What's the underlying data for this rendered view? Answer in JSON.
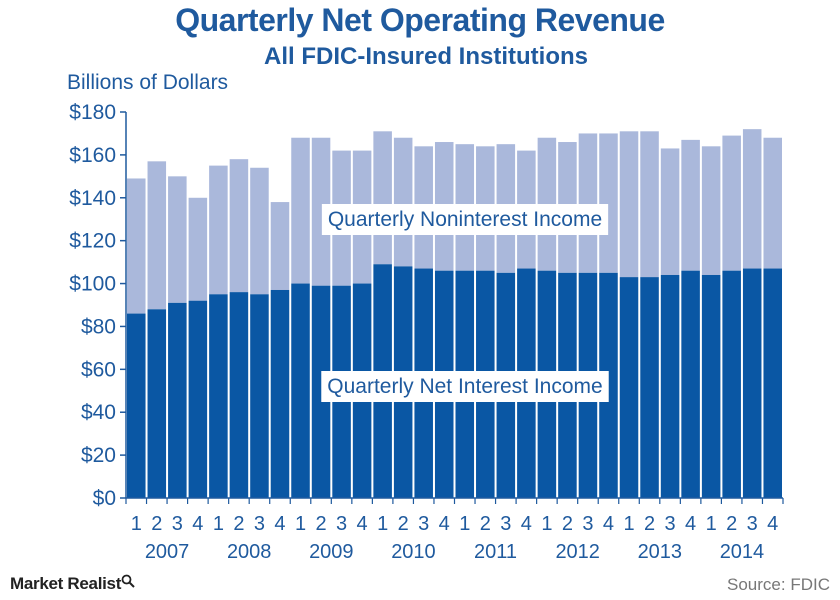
{
  "header": {
    "title": "Quarterly Net Operating Revenue",
    "subtitle": "All FDIC-Insured Institutions"
  },
  "footer": {
    "brand": "Market Realist",
    "brand_icon": "magnifier-icon",
    "source": "Source: FDIC"
  },
  "colors": {
    "text": "#1f5a9e",
    "net_interest": "#0a57a4",
    "noninterest": "#aab8db",
    "axis": "#1f5a9e"
  },
  "chart_data": {
    "type": "bar",
    "stacked": true,
    "title": "Quarterly Net Operating Revenue",
    "subtitle": "All FDIC-Insured Institutions",
    "ylabel": "Billions of Dollars",
    "xlabel": "",
    "ylim": [
      0,
      180
    ],
    "yticks": [
      "$0",
      "$20",
      "$40",
      "$60",
      "$80",
      "$100",
      "$120",
      "$140",
      "$160",
      "$180"
    ],
    "years": [
      "2007",
      "2008",
      "2009",
      "2010",
      "2011",
      "2012",
      "2013",
      "2014"
    ],
    "quarter_labels": [
      "1",
      "2",
      "3",
      "4"
    ],
    "categories": [
      "2007 Q1",
      "2007 Q2",
      "2007 Q3",
      "2007 Q4",
      "2008 Q1",
      "2008 Q2",
      "2008 Q3",
      "2008 Q4",
      "2009 Q1",
      "2009 Q2",
      "2009 Q3",
      "2009 Q4",
      "2010 Q1",
      "2010 Q2",
      "2010 Q3",
      "2010 Q4",
      "2011 Q1",
      "2011 Q2",
      "2011 Q3",
      "2011 Q4",
      "2012 Q1",
      "2012 Q2",
      "2012 Q3",
      "2012 Q4",
      "2013 Q1",
      "2013 Q2",
      "2013 Q3",
      "2013 Q4",
      "2014 Q1",
      "2014 Q2",
      "2014 Q3",
      "2014 Q4"
    ],
    "series": [
      {
        "name": "Quarterly Net Interest Income",
        "values": [
          86,
          88,
          91,
          92,
          95,
          96,
          95,
          97,
          100,
          99,
          99,
          100,
          109,
          108,
          107,
          106,
          106,
          106,
          105,
          107,
          106,
          105,
          105,
          105,
          103,
          103,
          104,
          106,
          104,
          106,
          107,
          107
        ]
      },
      {
        "name": "Quarterly Noninterest Income",
        "values": [
          63,
          69,
          59,
          48,
          60,
          62,
          59,
          41,
          68,
          69,
          63,
          62,
          62,
          60,
          57,
          60,
          59,
          58,
          60,
          55,
          62,
          61,
          65,
          65,
          68,
          68,
          59,
          61,
          60,
          63,
          65,
          61
        ]
      }
    ],
    "annotations": [
      "Quarterly Noninterest Income",
      "Quarterly Net Interest Income"
    ],
    "grid": false,
    "legend": "none"
  }
}
